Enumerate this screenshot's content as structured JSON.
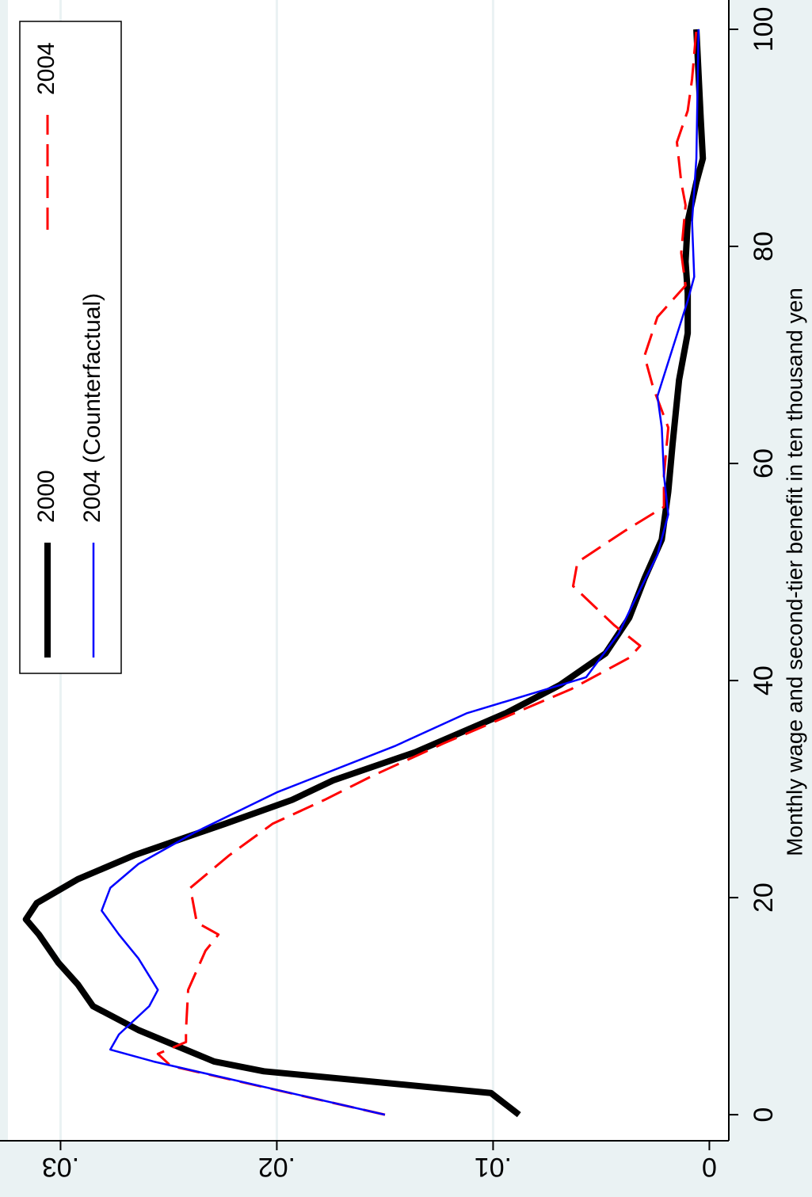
{
  "chart_data": {
    "type": "line",
    "x_label": "Monthly wage and second-tier benefit in ten thousand yen",
    "xlim": [
      -2.4,
      102.7
    ],
    "ylim": [
      -0.0009,
      0.0328
    ],
    "xticks": [
      0,
      20,
      40,
      60,
      80,
      100
    ],
    "yticks": [
      0,
      {
        "value": 0.01,
        "label": ".01"
      },
      {
        "value": 0.02,
        "label": ".02"
      },
      {
        "value": 0.03,
        "label": ".03"
      }
    ],
    "grid": true,
    "legend_position": "top-right",
    "series": [
      {
        "name": "2000",
        "color": "#000000",
        "x": [
          0,
          2,
          4,
          4.9,
          7.8,
          10,
          12,
          14,
          16.6,
          18,
          19.5,
          21.7,
          23.9,
          26.8,
          29,
          30.8,
          33.4,
          37,
          39.6,
          42.5,
          45.8,
          49.4,
          53,
          57.4,
          61.8,
          67.7,
          72,
          75.7,
          78.6,
          82.3,
          85.9,
          88.1,
          91.8,
          100
        ],
        "values": [
          0.0088,
          0.0101,
          0.0206,
          0.0229,
          0.0264,
          0.0285,
          0.0292,
          0.0301,
          0.031,
          0.0316,
          0.0311,
          0.0292,
          0.0266,
          0.0224,
          0.0193,
          0.0174,
          0.0136,
          0.0094,
          0.0069,
          0.0048,
          0.0037,
          0.003,
          0.0022,
          0.0019,
          0.0017,
          0.0014,
          0.001,
          0.001,
          0.0011,
          0.001,
          0.0006,
          0.0003,
          0.0004,
          0.0006
        ]
      },
      {
        "name": "2004",
        "color": "#ff0000",
        "x": [
          0,
          4.5,
          5.6,
          6.7,
          7.8,
          11.5,
          15.1,
          16.6,
          17.7,
          20.9,
          23.9,
          26.8,
          29,
          31.2,
          34.2,
          37,
          39.2,
          42.1,
          43.2,
          45.1,
          48.7,
          50.9,
          53.8,
          56,
          58.9,
          63.3,
          67,
          69.9,
          73.5,
          76.4,
          79.4,
          83.8,
          85.9,
          89.6,
          92.5,
          95.4,
          100
        ],
        "values": [
          0.015,
          0.0249,
          0.0255,
          0.0242,
          0.0242,
          0.0241,
          0.0233,
          0.0227,
          0.0237,
          0.024,
          0.0222,
          0.0202,
          0.0178,
          0.0156,
          0.0123,
          0.009,
          0.0064,
          0.0037,
          0.0032,
          0.0044,
          0.0063,
          0.0061,
          0.0039,
          0.0021,
          0.0021,
          0.0019,
          0.0026,
          0.003,
          0.0024,
          0.0011,
          0.0013,
          0.0011,
          0.0013,
          0.0015,
          0.001,
          0.0008,
          0.0006
        ]
      },
      {
        "name": "2004 (Counterfactual)",
        "color": "#0000ff",
        "x": [
          0,
          4.9,
          6,
          7.4,
          10,
          11.5,
          14.4,
          16.6,
          18.8,
          20.9,
          23.1,
          26,
          29.7,
          34,
          37,
          40.3,
          44.3,
          47.2,
          51.6,
          55.3,
          58.9,
          63.3,
          66.2,
          70.6,
          75,
          77.2,
          82.3,
          88.1,
          100
        ],
        "values": [
          0.015,
          0.0257,
          0.0277,
          0.0273,
          0.0259,
          0.0255,
          0.0264,
          0.0273,
          0.0281,
          0.0277,
          0.0264,
          0.0238,
          0.02,
          0.0145,
          0.0112,
          0.0057,
          0.0042,
          0.0035,
          0.0024,
          0.0019,
          0.0021,
          0.0022,
          0.0024,
          0.0017,
          0.001,
          0.0007,
          0.0008,
          0.0006,
          0.0005
        ]
      }
    ]
  }
}
